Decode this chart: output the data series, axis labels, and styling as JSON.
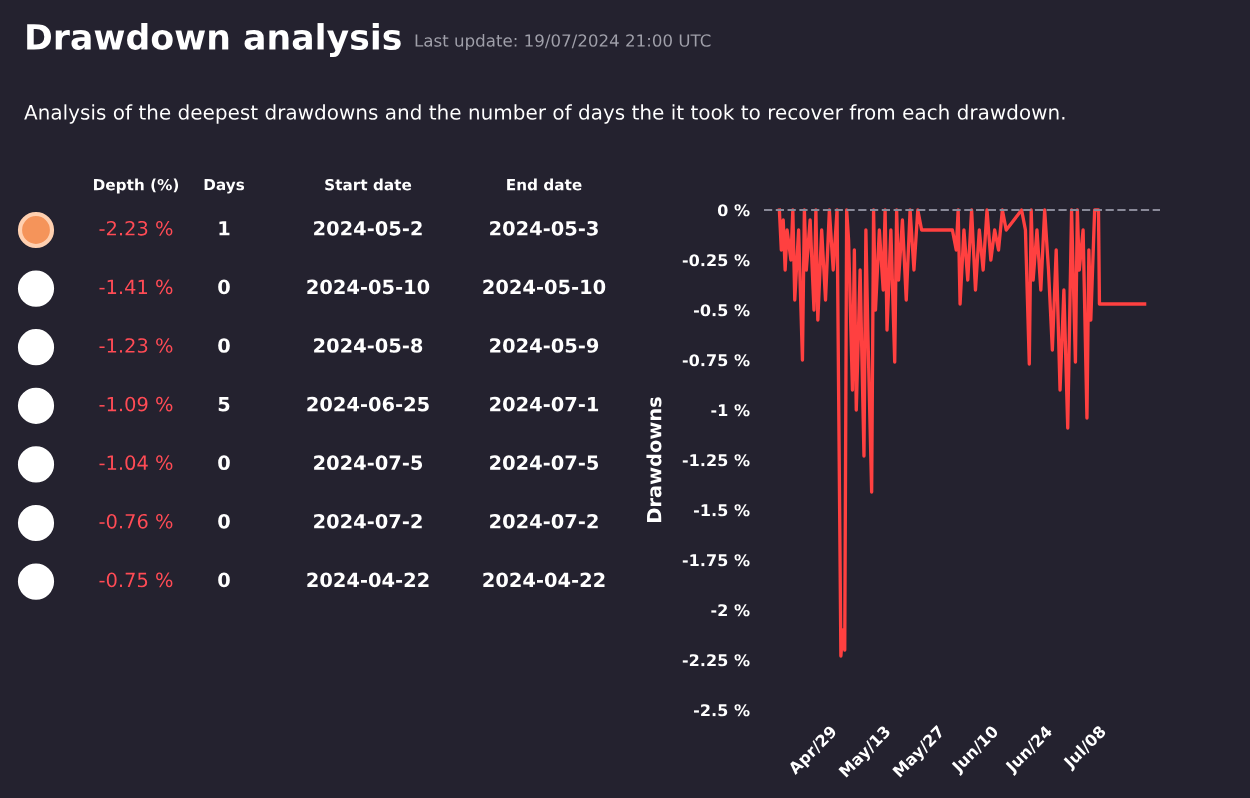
{
  "chart_data": [
    {
      "type": "other",
      "title": "Drawdown analysis",
      "subtitle": "Last update: 19/07/2024 21:00 UTC",
      "categories": [
        "Depth (%)",
        "Days",
        "Start date",
        "End date"
      ],
      "annotations": [
        "Analysis of the deepest drawdowns and the number of days the it took to recover from each drawdown.",
        "-2.23 %",
        "1",
        "2024-05-2",
        "2024-05-3",
        "-1.41 %",
        "0",
        "2024-05-10",
        "2024-05-10",
        "-1.23 %",
        "0",
        "2024-05-8",
        "2024-05-9",
        "-1.09 %",
        "5",
        "2024-06-25",
        "2024-07-1",
        "-1.04 %",
        "0",
        "2024-07-5",
        "2024-07-5",
        "-0.76 %",
        "0",
        "2024-07-2",
        "2024-07-2",
        "-0.75 %",
        "0",
        "2024-04-22",
        "2024-04-22"
      ]
    },
    {
      "type": "line",
      "ylabel": "Drawdowns",
      "xlim": [
        "2024-04-12",
        "2024-07-24"
      ],
      "xticks": [
        {
          "value": "2024-04-29",
          "label": "Apr/29"
        },
        {
          "value": "2024-05-13",
          "label": "May/13"
        },
        {
          "value": "2024-05-27",
          "label": "May/27"
        },
        {
          "value": "2024-06-10",
          "label": "Jun/10"
        },
        {
          "value": "2024-06-24",
          "label": "Jun/24"
        },
        {
          "value": "2024-07-08",
          "label": "Jul/08"
        }
      ],
      "ylim": [
        -2.5,
        0
      ],
      "yticks": [
        {
          "value": 0,
          "label": "0 %"
        },
        {
          "value": -0.25,
          "label": "-0.25 %"
        },
        {
          "value": -0.5,
          "label": "-0.5 %"
        },
        {
          "value": -0.75,
          "label": "-0.75 %"
        },
        {
          "value": -1,
          "label": "-1 %"
        },
        {
          "value": -1.25,
          "label": "-1.25 %"
        },
        {
          "value": -1.5,
          "label": "-1.5 %"
        },
        {
          "value": -1.75,
          "label": "-1.75 %"
        },
        {
          "value": -2,
          "label": "-2 %"
        },
        {
          "value": -2.25,
          "label": "-2.25 %"
        },
        {
          "value": -2.5,
          "label": "-2.5 %"
        }
      ],
      "ref_lines": [
        {
          "axis": "y",
          "value": 0,
          "color": "#8a8a99",
          "line_style": "dashed"
        }
      ],
      "series": [
        {
          "color": "#ff4040",
          "x": [
            "2024-04-16",
            "2024-04-16T12:00",
            "2024-04-17",
            "2024-04-17T12:00",
            "2024-04-18",
            "2024-04-19",
            "2024-04-19T12:00",
            "2024-04-20",
            "2024-04-21",
            "2024-04-22",
            "2024-04-22T12:00",
            "2024-04-23",
            "2024-04-24",
            "2024-04-25",
            "2024-04-25T12:00",
            "2024-04-26",
            "2024-04-27",
            "2024-04-28",
            "2024-04-29",
            "2024-04-30",
            "2024-05-01",
            "2024-05-02",
            "2024-05-02T12:00",
            "2024-05-03",
            "2024-05-03T12:00",
            "2024-05-04",
            "2024-05-05",
            "2024-05-05T12:00",
            "2024-05-06",
            "2024-05-07",
            "2024-05-08",
            "2024-05-08T12:00",
            "2024-05-09",
            "2024-05-10",
            "2024-05-10T12:00",
            "2024-05-11",
            "2024-05-12",
            "2024-05-13",
            "2024-05-13T12:00",
            "2024-05-14",
            "2024-05-15",
            "2024-05-16",
            "2024-05-16T12:00",
            "2024-05-17",
            "2024-05-18",
            "2024-05-19",
            "2024-05-20",
            "2024-05-21",
            "2024-05-22",
            "2024-05-23",
            "2024-05-31",
            "2024-06-01",
            "2024-06-01T12:00",
            "2024-06-02",
            "2024-06-03",
            "2024-06-04",
            "2024-06-05",
            "2024-06-06",
            "2024-06-07",
            "2024-06-08",
            "2024-06-09",
            "2024-06-10",
            "2024-06-11",
            "2024-06-12",
            "2024-06-13",
            "2024-06-14",
            "2024-06-18",
            "2024-06-19",
            "2024-06-20",
            "2024-06-20T12:00",
            "2024-06-21",
            "2024-06-22",
            "2024-06-23",
            "2024-06-24",
            "2024-06-25",
            "2024-06-26",
            "2024-06-27",
            "2024-06-28",
            "2024-06-29",
            "2024-06-30",
            "2024-07-01",
            "2024-07-02",
            "2024-07-02T12:00",
            "2024-07-03",
            "2024-07-04",
            "2024-07-05",
            "2024-07-05T12:00",
            "2024-07-06",
            "2024-07-07",
            "2024-07-08",
            "2024-07-08T06:00",
            "2024-07-20"
          ],
          "values": [
            0,
            -0.2,
            -0.05,
            -0.3,
            -0.1,
            -0.25,
            0,
            -0.45,
            -0.1,
            -0.75,
            0,
            -0.3,
            -0.05,
            -0.5,
            0,
            -0.55,
            -0.1,
            -0.45,
            0,
            -0.3,
            0,
            -2.23,
            -2.1,
            -2.2,
            0,
            -0.15,
            -0.9,
            -0.2,
            -1.0,
            -0.3,
            -1.23,
            -0.1,
            -0.6,
            -1.41,
            0,
            -0.5,
            -0.1,
            -0.4,
            0,
            -0.6,
            -0.1,
            -0.76,
            0,
            -0.35,
            -0.05,
            -0.45,
            0,
            -0.3,
            0,
            -0.1,
            -0.1,
            -0.2,
            0,
            -0.47,
            -0.1,
            -0.35,
            0,
            -0.4,
            -0.1,
            -0.3,
            0,
            -0.25,
            -0.1,
            -0.2,
            0,
            -0.1,
            0,
            -0.1,
            -0.77,
            0,
            -0.35,
            -0.1,
            -0.4,
            0,
            -0.3,
            -0.7,
            -0.2,
            -0.9,
            -0.4,
            -1.09,
            0,
            -0.76,
            0,
            -0.3,
            -0.1,
            -1.04,
            -0.2,
            -0.55,
            0,
            0,
            -0.47,
            -0.47
          ]
        }
      ]
    }
  ]
}
